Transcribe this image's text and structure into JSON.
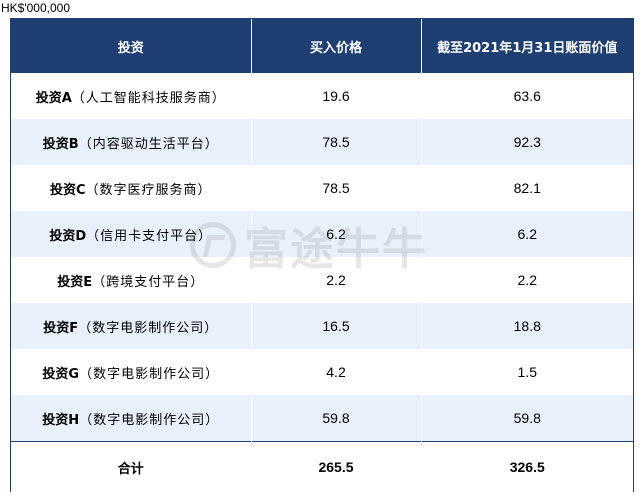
{
  "unit_label": "HK$'000,000",
  "header": {
    "col_investment": "投资",
    "col_purchase_price": "买入价格",
    "col_book_value": "截至2021年1月31日账面价值"
  },
  "rows": [
    {
      "name": "投资A",
      "desc": "（人工智能科技服务商）",
      "purchase": "19.6",
      "book": "63.6"
    },
    {
      "name": "投资B",
      "desc": "（内容驱动生活平台）",
      "purchase": "78.5",
      "book": "92.3"
    },
    {
      "name": "投资C",
      "desc": "（数字医疗服务商）",
      "purchase": "78.5",
      "book": "82.1"
    },
    {
      "name": "投资D",
      "desc": "（信用卡支付平台）",
      "purchase": "6.2",
      "book": "6.2"
    },
    {
      "name": "投资E",
      "desc": "（跨境支付平台）",
      "purchase": "2.2",
      "book": "2.2"
    },
    {
      "name": "投资F",
      "desc": "（数字电影制作公司）",
      "purchase": "16.5",
      "book": "18.8"
    },
    {
      "name": "投资G",
      "desc": "（数字电影制作公司）",
      "purchase": "4.2",
      "book": "1.5"
    },
    {
      "name": "投资H",
      "desc": "（数字电影制作公司）",
      "purchase": "59.8",
      "book": "59.8"
    }
  ],
  "total": {
    "label": "合计",
    "purchase": "265.5",
    "book": "326.5"
  },
  "watermark": {
    "text": "富途牛牛",
    "icon": "futu-logo-icon"
  },
  "colors": {
    "header_bg": "#1f3f73",
    "stripe_bg": "#e8f1fb"
  }
}
